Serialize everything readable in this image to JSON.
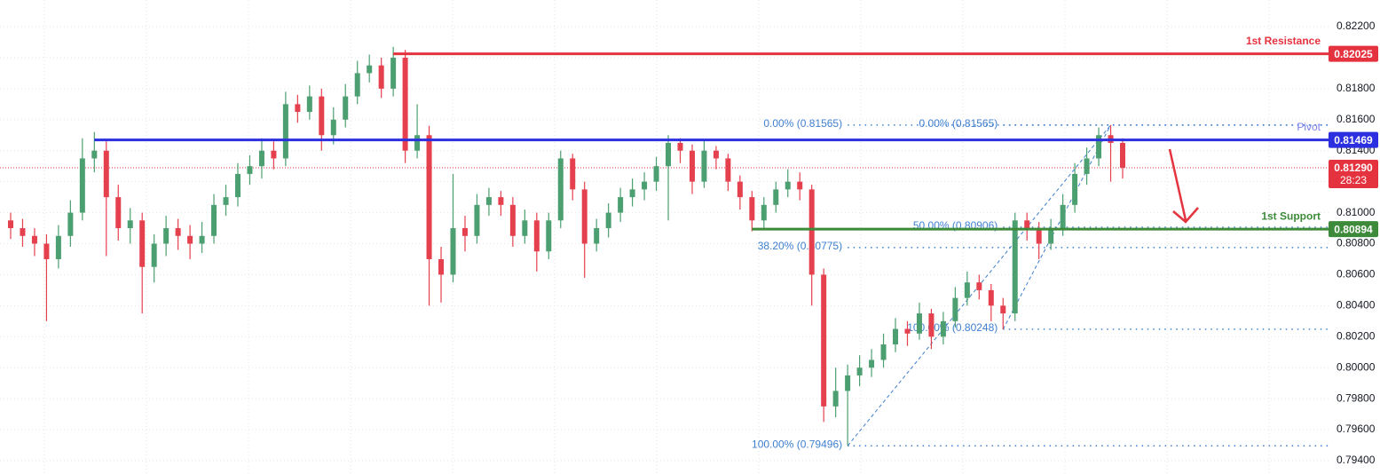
{
  "chart_data": {
    "type": "candlestick",
    "ylim": [
      0.79314,
      0.82372
    ],
    "yticks": [
      {
        "value": 0.794,
        "label": "0.79400"
      },
      {
        "value": 0.796,
        "label": "0.79600"
      },
      {
        "value": 0.798,
        "label": "0.79800"
      },
      {
        "value": 0.8,
        "label": "0.80000"
      },
      {
        "value": 0.802,
        "label": "0.80200"
      },
      {
        "value": 0.804,
        "label": "0.80400"
      },
      {
        "value": 0.806,
        "label": "0.80600"
      },
      {
        "value": 0.808,
        "label": "0.80800"
      },
      {
        "value": 0.81,
        "label": "0.81000"
      },
      {
        "value": 0.812,
        "label": "0.81200"
      },
      {
        "value": 0.814,
        "label": "0.81400"
      },
      {
        "value": 0.816,
        "label": "0.81600"
      },
      {
        "value": 0.818,
        "label": "0.81800"
      },
      {
        "value": 0.82,
        "label": "0.82000"
      },
      {
        "value": 0.822,
        "label": "0.82200"
      }
    ],
    "grid": true,
    "up_color": "#4c9f70",
    "down_color": "#e5404e",
    "candles": [
      [
        0.8095,
        0.81,
        0.8083,
        0.809
      ],
      [
        0.809,
        0.8096,
        0.8078,
        0.8085
      ],
      [
        0.8085,
        0.809,
        0.8072,
        0.808
      ],
      [
        0.808,
        0.8086,
        0.803,
        0.807
      ],
      [
        0.807,
        0.8092,
        0.8064,
        0.8085
      ],
      [
        0.8085,
        0.8108,
        0.8078,
        0.81
      ],
      [
        0.81,
        0.8148,
        0.8095,
        0.8135
      ],
      [
        0.8135,
        0.8152,
        0.8126,
        0.814
      ],
      [
        0.814,
        0.8146,
        0.8072,
        0.811
      ],
      [
        0.811,
        0.8118,
        0.8082,
        0.809
      ],
      [
        0.809,
        0.8103,
        0.808,
        0.8095
      ],
      [
        0.8095,
        0.81,
        0.8035,
        0.8065
      ],
      [
        0.8065,
        0.8086,
        0.8055,
        0.808
      ],
      [
        0.808,
        0.8098,
        0.8072,
        0.809
      ],
      [
        0.809,
        0.8096,
        0.8076,
        0.8085
      ],
      [
        0.8085,
        0.8092,
        0.807,
        0.808
      ],
      [
        0.808,
        0.8094,
        0.8074,
        0.8085
      ],
      [
        0.8085,
        0.8112,
        0.808,
        0.8105
      ],
      [
        0.8105,
        0.8118,
        0.8098,
        0.811
      ],
      [
        0.811,
        0.8132,
        0.8104,
        0.8125
      ],
      [
        0.8125,
        0.8137,
        0.8118,
        0.813
      ],
      [
        0.813,
        0.8148,
        0.8122,
        0.814
      ],
      [
        0.814,
        0.8146,
        0.8128,
        0.8135
      ],
      [
        0.8135,
        0.8178,
        0.813,
        0.817
      ],
      [
        0.817,
        0.8176,
        0.8158,
        0.8165
      ],
      [
        0.8165,
        0.8182,
        0.816,
        0.8175
      ],
      [
        0.8175,
        0.818,
        0.814,
        0.815
      ],
      [
        0.815,
        0.8168,
        0.8144,
        0.816
      ],
      [
        0.816,
        0.8183,
        0.8155,
        0.8175
      ],
      [
        0.8175,
        0.8198,
        0.817,
        0.819
      ],
      [
        0.819,
        0.8202,
        0.8184,
        0.8195
      ],
      [
        0.8195,
        0.82,
        0.8174,
        0.818
      ],
      [
        0.818,
        0.8207,
        0.8175,
        0.82
      ],
      [
        0.82,
        0.8205,
        0.8132,
        0.814
      ],
      [
        0.814,
        0.817,
        0.8135,
        0.815
      ],
      [
        0.815,
        0.8156,
        0.804,
        0.807
      ],
      [
        0.807,
        0.8078,
        0.8042,
        0.806
      ],
      [
        0.806,
        0.8125,
        0.8055,
        0.809
      ],
      [
        0.809,
        0.8098,
        0.8075,
        0.8085
      ],
      [
        0.8085,
        0.8112,
        0.808,
        0.8105
      ],
      [
        0.8105,
        0.8116,
        0.8098,
        0.811
      ],
      [
        0.811,
        0.8114,
        0.8098,
        0.8105
      ],
      [
        0.8105,
        0.811,
        0.8078,
        0.8085
      ],
      [
        0.8085,
        0.8102,
        0.808,
        0.8095
      ],
      [
        0.8095,
        0.81,
        0.8062,
        0.8075
      ],
      [
        0.8075,
        0.81,
        0.807,
        0.8095
      ],
      [
        0.8095,
        0.814,
        0.809,
        0.8135
      ],
      [
        0.8135,
        0.8138,
        0.8108,
        0.8115
      ],
      [
        0.8115,
        0.812,
        0.8058,
        0.808
      ],
      [
        0.808,
        0.8096,
        0.8075,
        0.809
      ],
      [
        0.809,
        0.8106,
        0.8084,
        0.81
      ],
      [
        0.81,
        0.8116,
        0.8094,
        0.811
      ],
      [
        0.811,
        0.8122,
        0.8104,
        0.8115
      ],
      [
        0.8115,
        0.8126,
        0.8108,
        0.812
      ],
      [
        0.812,
        0.8136,
        0.8114,
        0.813
      ],
      [
        0.813,
        0.815,
        0.8095,
        0.8145
      ],
      [
        0.8145,
        0.8148,
        0.8132,
        0.814
      ],
      [
        0.814,
        0.8144,
        0.8112,
        0.812
      ],
      [
        0.812,
        0.8147,
        0.8116,
        0.814
      ],
      [
        0.814,
        0.8143,
        0.8128,
        0.8135
      ],
      [
        0.8135,
        0.8138,
        0.8114,
        0.812
      ],
      [
        0.812,
        0.8124,
        0.8102,
        0.811
      ],
      [
        0.811,
        0.8114,
        0.8088,
        0.8095
      ],
      [
        0.8095,
        0.811,
        0.809,
        0.8105
      ],
      [
        0.8105,
        0.812,
        0.81,
        0.8115
      ],
      [
        0.8115,
        0.8128,
        0.811,
        0.812
      ],
      [
        0.812,
        0.8126,
        0.8108,
        0.8115
      ],
      [
        0.8115,
        0.8118,
        0.804,
        0.806
      ],
      [
        0.806,
        0.8064,
        0.7965,
        0.7975
      ],
      [
        0.7975,
        0.8,
        0.7968,
        0.7985
      ],
      [
        0.7985,
        0.8002,
        0.795,
        0.7995
      ],
      [
        0.7995,
        0.8008,
        0.7988,
        0.8
      ],
      [
        0.8,
        0.8012,
        0.7994,
        0.8005
      ],
      [
        0.8005,
        0.8022,
        0.8,
        0.8015
      ],
      [
        0.8015,
        0.8032,
        0.801,
        0.8025
      ],
      [
        0.8025,
        0.803,
        0.8014,
        0.8022
      ],
      [
        0.8022,
        0.8042,
        0.8018,
        0.8035
      ],
      [
        0.8035,
        0.8038,
        0.8012,
        0.802
      ],
      [
        0.802,
        0.8036,
        0.8015,
        0.803
      ],
      [
        0.803,
        0.8052,
        0.8026,
        0.8045
      ],
      [
        0.8045,
        0.8062,
        0.804,
        0.8055
      ],
      [
        0.8055,
        0.806,
        0.8044,
        0.805
      ],
      [
        0.805,
        0.8054,
        0.803,
        0.804
      ],
      [
        0.804,
        0.8045,
        0.80248,
        0.8035
      ],
      [
        0.8035,
        0.81,
        0.803,
        0.8095
      ],
      [
        0.8095,
        0.81,
        0.8082,
        0.809
      ],
      [
        0.809,
        0.8094,
        0.807,
        0.808
      ],
      [
        0.808,
        0.8096,
        0.8076,
        0.809
      ],
      [
        0.809,
        0.8112,
        0.8085,
        0.8105
      ],
      [
        0.8105,
        0.8132,
        0.81,
        0.8125
      ],
      [
        0.8125,
        0.8142,
        0.8118,
        0.8135
      ],
      [
        0.8135,
        0.8155,
        0.813,
        0.815
      ],
      [
        0.815,
        0.81565,
        0.812,
        0.8145
      ],
      [
        0.8145,
        0.8148,
        0.8122,
        0.8129
      ]
    ],
    "levels": [
      {
        "name": "1st Resistance",
        "value": 0.82025,
        "label": "0.82025",
        "color": "#e5323f"
      },
      {
        "name": "Pivot",
        "value": 0.81469,
        "label": "0.81469",
        "color": "#2c2fe0"
      },
      {
        "name": "1st Support",
        "value": 0.80894,
        "label": "0.80894",
        "color": "#3d8a3a"
      }
    ],
    "current_price": {
      "value": 0.8129,
      "label": "0.81290",
      "countdown": "28:23",
      "color": "#e5323f"
    },
    "fibs": [
      {
        "color": "#3f7fcf",
        "levels": [
          {
            "value": 0.81565,
            "label": "0.00% (0.81565)"
          },
          {
            "value": 0.80775,
            "label": "38.20% (0.80775)"
          },
          {
            "value": 0.79496,
            "label": "100.00% (0.79496)"
          }
        ]
      },
      {
        "color": "#3f7fcf",
        "levels": [
          {
            "value": 0.81565,
            "label": "0.00% (0.81565)"
          },
          {
            "value": 0.80906,
            "label": "50.00% (0.80906)"
          },
          {
            "value": 0.80248,
            "label": "100.00% (0.80248)"
          }
        ]
      }
    ]
  }
}
